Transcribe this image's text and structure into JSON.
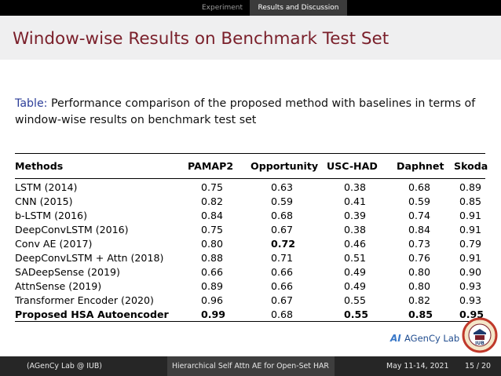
{
  "nav": {
    "section": "Experiment",
    "subsection": "Results and Discussion"
  },
  "frame": {
    "title": "Window-wise Results on Benchmark Test Set"
  },
  "caption": {
    "label": "Table:",
    "text": " Performance comparison of the proposed method with baselines in terms of window-wise results on benchmark test set"
  },
  "table": {
    "headers": [
      "Methods",
      "PAMAP2",
      "Opportunity",
      "USC-HAD",
      "Daphnet",
      "Skoda"
    ],
    "rows": [
      [
        "LSTM (2014)",
        "0.75",
        "0.63",
        "0.38",
        "0.68",
        "0.89"
      ],
      [
        "CNN (2015)",
        "0.82",
        "0.59",
        "0.41",
        "0.59",
        "0.85"
      ],
      [
        "b-LSTM (2016)",
        "0.84",
        "0.68",
        "0.39",
        "0.74",
        "0.91"
      ],
      [
        "DeepConvLSTM (2016)",
        "0.75",
        "0.67",
        "0.38",
        "0.84",
        "0.91"
      ],
      [
        "Conv AE (2017)",
        "0.80",
        "0.72",
        "0.46",
        "0.73",
        "0.79"
      ],
      [
        "DeepConvLSTM + Attn (2018)",
        "0.88",
        "0.71",
        "0.51",
        "0.76",
        "0.91"
      ],
      [
        "SADeepSense (2019)",
        "0.66",
        "0.66",
        "0.49",
        "0.80",
        "0.90"
      ],
      [
        "AttnSense (2019)",
        "0.89",
        "0.66",
        "0.49",
        "0.80",
        "0.93"
      ],
      [
        "Transformer Encoder (2020)",
        "0.96",
        "0.67",
        "0.55",
        "0.82",
        "0.93"
      ],
      [
        "Proposed HSA Autoencoder",
        "0.99",
        "0.68",
        "0.55",
        "0.85",
        "0.95"
      ]
    ],
    "bold_cells": [
      [
        4,
        2
      ],
      [
        9,
        0
      ],
      [
        9,
        1
      ],
      [
        9,
        3
      ],
      [
        9,
        4
      ],
      [
        9,
        5
      ]
    ]
  },
  "logos": {
    "agency": "AGenCy Lab",
    "agency_ai": "AI",
    "iub": "IUB"
  },
  "footer": {
    "left": "(AGenCy Lab @ IUB)",
    "center": "Hierarchical Self Attn AE for Open-Set HAR",
    "date": "May 11-14, 2021",
    "page": "15 / 20"
  }
}
